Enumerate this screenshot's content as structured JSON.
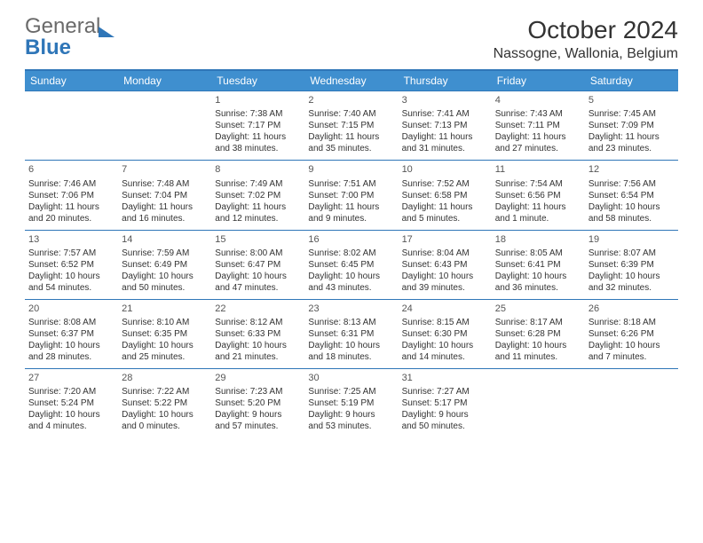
{
  "logo": {
    "part1": "General",
    "part2": "Blue"
  },
  "title": "October 2024",
  "location": "Nassogne, Wallonia, Belgium",
  "colors": {
    "header_bg": "#3f8fcf",
    "header_text": "#ffffff",
    "border": "#2f76b8",
    "text": "#333333",
    "background": "#ffffff"
  },
  "dow": [
    "Sunday",
    "Monday",
    "Tuesday",
    "Wednesday",
    "Thursday",
    "Friday",
    "Saturday"
  ],
  "weeks": [
    [
      null,
      null,
      {
        "n": "1",
        "sr": "Sunrise: 7:38 AM",
        "ss": "Sunset: 7:17 PM",
        "d1": "Daylight: 11 hours",
        "d2": "and 38 minutes."
      },
      {
        "n": "2",
        "sr": "Sunrise: 7:40 AM",
        "ss": "Sunset: 7:15 PM",
        "d1": "Daylight: 11 hours",
        "d2": "and 35 minutes."
      },
      {
        "n": "3",
        "sr": "Sunrise: 7:41 AM",
        "ss": "Sunset: 7:13 PM",
        "d1": "Daylight: 11 hours",
        "d2": "and 31 minutes."
      },
      {
        "n": "4",
        "sr": "Sunrise: 7:43 AM",
        "ss": "Sunset: 7:11 PM",
        "d1": "Daylight: 11 hours",
        "d2": "and 27 minutes."
      },
      {
        "n": "5",
        "sr": "Sunrise: 7:45 AM",
        "ss": "Sunset: 7:09 PM",
        "d1": "Daylight: 11 hours",
        "d2": "and 23 minutes."
      }
    ],
    [
      {
        "n": "6",
        "sr": "Sunrise: 7:46 AM",
        "ss": "Sunset: 7:06 PM",
        "d1": "Daylight: 11 hours",
        "d2": "and 20 minutes."
      },
      {
        "n": "7",
        "sr": "Sunrise: 7:48 AM",
        "ss": "Sunset: 7:04 PM",
        "d1": "Daylight: 11 hours",
        "d2": "and 16 minutes."
      },
      {
        "n": "8",
        "sr": "Sunrise: 7:49 AM",
        "ss": "Sunset: 7:02 PM",
        "d1": "Daylight: 11 hours",
        "d2": "and 12 minutes."
      },
      {
        "n": "9",
        "sr": "Sunrise: 7:51 AM",
        "ss": "Sunset: 7:00 PM",
        "d1": "Daylight: 11 hours",
        "d2": "and 9 minutes."
      },
      {
        "n": "10",
        "sr": "Sunrise: 7:52 AM",
        "ss": "Sunset: 6:58 PM",
        "d1": "Daylight: 11 hours",
        "d2": "and 5 minutes."
      },
      {
        "n": "11",
        "sr": "Sunrise: 7:54 AM",
        "ss": "Sunset: 6:56 PM",
        "d1": "Daylight: 11 hours",
        "d2": "and 1 minute."
      },
      {
        "n": "12",
        "sr": "Sunrise: 7:56 AM",
        "ss": "Sunset: 6:54 PM",
        "d1": "Daylight: 10 hours",
        "d2": "and 58 minutes."
      }
    ],
    [
      {
        "n": "13",
        "sr": "Sunrise: 7:57 AM",
        "ss": "Sunset: 6:52 PM",
        "d1": "Daylight: 10 hours",
        "d2": "and 54 minutes."
      },
      {
        "n": "14",
        "sr": "Sunrise: 7:59 AM",
        "ss": "Sunset: 6:49 PM",
        "d1": "Daylight: 10 hours",
        "d2": "and 50 minutes."
      },
      {
        "n": "15",
        "sr": "Sunrise: 8:00 AM",
        "ss": "Sunset: 6:47 PM",
        "d1": "Daylight: 10 hours",
        "d2": "and 47 minutes."
      },
      {
        "n": "16",
        "sr": "Sunrise: 8:02 AM",
        "ss": "Sunset: 6:45 PM",
        "d1": "Daylight: 10 hours",
        "d2": "and 43 minutes."
      },
      {
        "n": "17",
        "sr": "Sunrise: 8:04 AM",
        "ss": "Sunset: 6:43 PM",
        "d1": "Daylight: 10 hours",
        "d2": "and 39 minutes."
      },
      {
        "n": "18",
        "sr": "Sunrise: 8:05 AM",
        "ss": "Sunset: 6:41 PM",
        "d1": "Daylight: 10 hours",
        "d2": "and 36 minutes."
      },
      {
        "n": "19",
        "sr": "Sunrise: 8:07 AM",
        "ss": "Sunset: 6:39 PM",
        "d1": "Daylight: 10 hours",
        "d2": "and 32 minutes."
      }
    ],
    [
      {
        "n": "20",
        "sr": "Sunrise: 8:08 AM",
        "ss": "Sunset: 6:37 PM",
        "d1": "Daylight: 10 hours",
        "d2": "and 28 minutes."
      },
      {
        "n": "21",
        "sr": "Sunrise: 8:10 AM",
        "ss": "Sunset: 6:35 PM",
        "d1": "Daylight: 10 hours",
        "d2": "and 25 minutes."
      },
      {
        "n": "22",
        "sr": "Sunrise: 8:12 AM",
        "ss": "Sunset: 6:33 PM",
        "d1": "Daylight: 10 hours",
        "d2": "and 21 minutes."
      },
      {
        "n": "23",
        "sr": "Sunrise: 8:13 AM",
        "ss": "Sunset: 6:31 PM",
        "d1": "Daylight: 10 hours",
        "d2": "and 18 minutes."
      },
      {
        "n": "24",
        "sr": "Sunrise: 8:15 AM",
        "ss": "Sunset: 6:30 PM",
        "d1": "Daylight: 10 hours",
        "d2": "and 14 minutes."
      },
      {
        "n": "25",
        "sr": "Sunrise: 8:17 AM",
        "ss": "Sunset: 6:28 PM",
        "d1": "Daylight: 10 hours",
        "d2": "and 11 minutes."
      },
      {
        "n": "26",
        "sr": "Sunrise: 8:18 AM",
        "ss": "Sunset: 6:26 PM",
        "d1": "Daylight: 10 hours",
        "d2": "and 7 minutes."
      }
    ],
    [
      {
        "n": "27",
        "sr": "Sunrise: 7:20 AM",
        "ss": "Sunset: 5:24 PM",
        "d1": "Daylight: 10 hours",
        "d2": "and 4 minutes."
      },
      {
        "n": "28",
        "sr": "Sunrise: 7:22 AM",
        "ss": "Sunset: 5:22 PM",
        "d1": "Daylight: 10 hours",
        "d2": "and 0 minutes."
      },
      {
        "n": "29",
        "sr": "Sunrise: 7:23 AM",
        "ss": "Sunset: 5:20 PM",
        "d1": "Daylight: 9 hours",
        "d2": "and 57 minutes."
      },
      {
        "n": "30",
        "sr": "Sunrise: 7:25 AM",
        "ss": "Sunset: 5:19 PM",
        "d1": "Daylight: 9 hours",
        "d2": "and 53 minutes."
      },
      {
        "n": "31",
        "sr": "Sunrise: 7:27 AM",
        "ss": "Sunset: 5:17 PM",
        "d1": "Daylight: 9 hours",
        "d2": "and 50 minutes."
      },
      null,
      null
    ]
  ]
}
